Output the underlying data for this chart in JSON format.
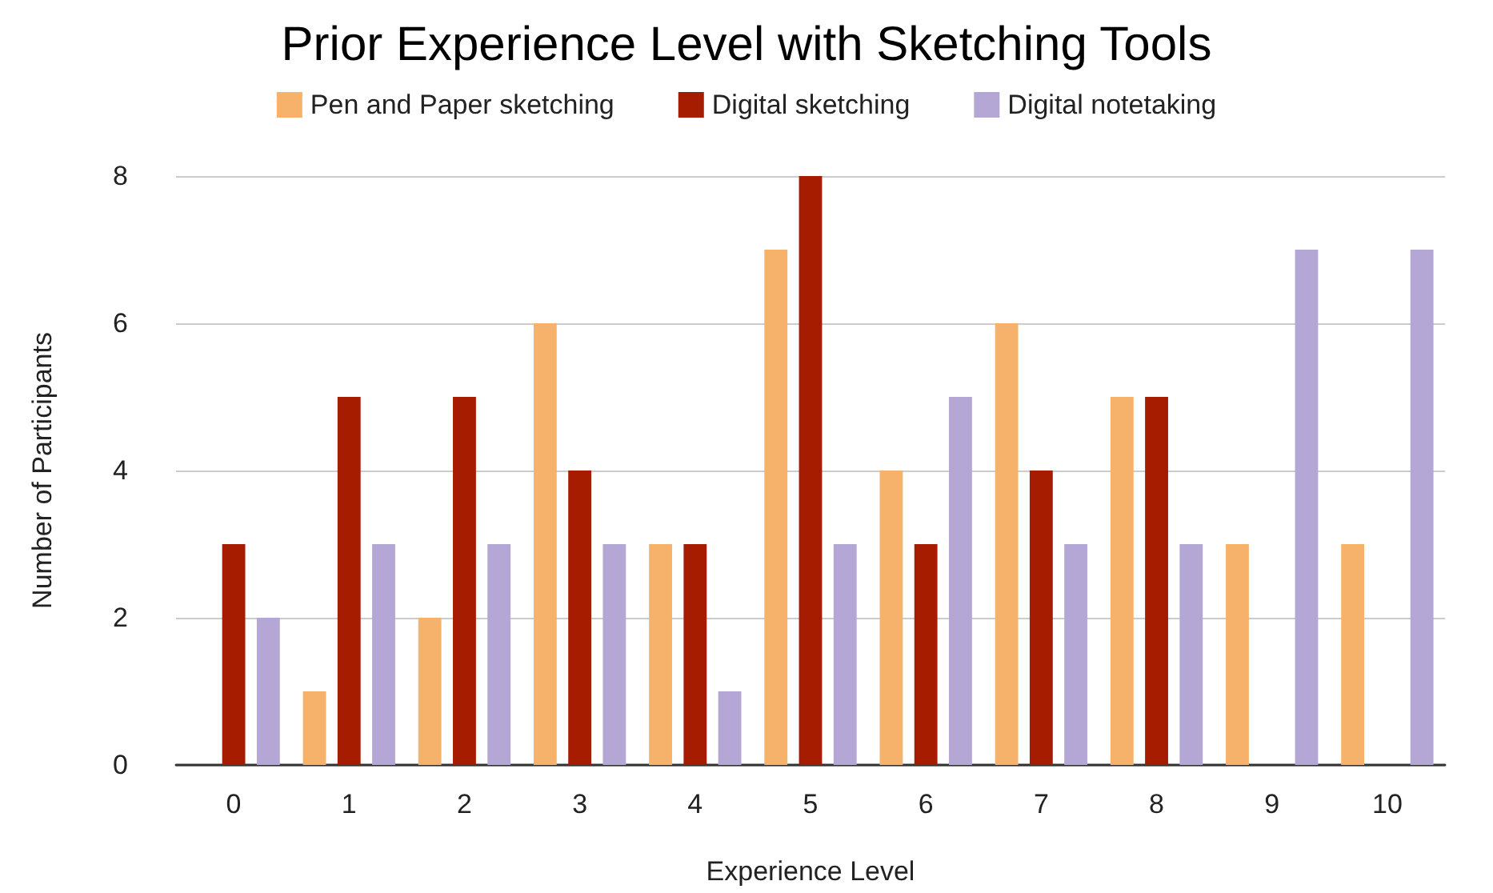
{
  "chart_data": {
    "type": "bar",
    "title": "Prior Experience Level with Sketching Tools",
    "xlabel": "Experience Level",
    "ylabel": "Number of Participants",
    "categories": [
      "0",
      "1",
      "2",
      "3",
      "4",
      "5",
      "6",
      "7",
      "8",
      "9",
      "10"
    ],
    "series": [
      {
        "name": "Pen and Paper sketching",
        "color": "#f6b26b",
        "values": [
          0,
          1,
          2,
          6,
          3,
          7,
          4,
          6,
          5,
          3,
          3
        ]
      },
      {
        "name": "Digital sketching",
        "color": "#a61c00",
        "values": [
          3,
          5,
          5,
          4,
          3,
          8,
          3,
          4,
          5,
          0,
          0
        ]
      },
      {
        "name": "Digital notetaking",
        "color": "#b4a7d6",
        "values": [
          2,
          3,
          3,
          3,
          1,
          3,
          5,
          3,
          3,
          7,
          7
        ]
      }
    ],
    "ylim": [
      0,
      8
    ],
    "yticks": [
      0,
      2,
      4,
      6,
      8
    ],
    "grid": "y",
    "legend": "top"
  }
}
